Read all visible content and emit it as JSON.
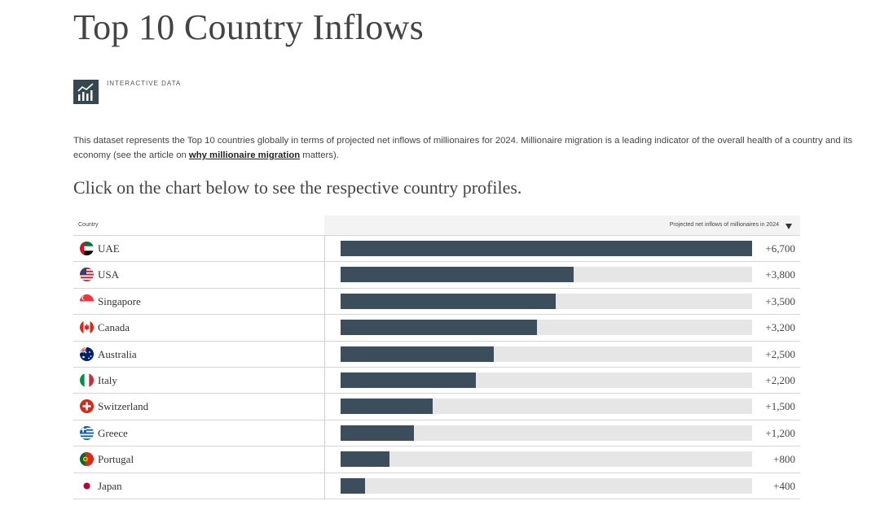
{
  "page": {
    "title": "Top 10 Country Inflows",
    "badge": "INTERACTIVE DATA",
    "description_pre": "This dataset represents the Top 10 countries globally in terms of projected net inflows of millionaires for 2024. Millionaire migration is a leading indicator of the overall health of a country and its economy (see the article on ",
    "description_link": "why millionaire migration",
    "description_post": " matters).",
    "subheading": "Click on the chart below to see the respective country profiles."
  },
  "table": {
    "col_country": "Country",
    "col_value": "Projected net inflows of millionaires in 2024",
    "bar_color": "#3c4d5c",
    "track_color": "#e6e6e6"
  },
  "chart_data": {
    "type": "bar",
    "orientation": "horizontal",
    "categories": [
      "UAE",
      "USA",
      "Singapore",
      "Canada",
      "Australia",
      "Italy",
      "Switzerland",
      "Greece",
      "Portugal",
      "Japan"
    ],
    "values": [
      6700,
      3800,
      3500,
      3200,
      2500,
      2200,
      1500,
      1200,
      800,
      400
    ],
    "labels": [
      "+6,700",
      "+3,800",
      "+3,500",
      "+3,200",
      "+2,500",
      "+2,200",
      "+1,500",
      "+1,200",
      "+800",
      "+400"
    ],
    "xlim": [
      0,
      6700
    ],
    "title": "",
    "xlabel": "Projected net inflows of millionaires in 2024",
    "ylabel": "Country"
  },
  "flags": [
    "uae-flag-icon",
    "usa-flag-icon",
    "singapore-flag-icon",
    "canada-flag-icon",
    "australia-flag-icon",
    "italy-flag-icon",
    "switzerland-flag-icon",
    "greece-flag-icon",
    "portugal-flag-icon",
    "japan-flag-icon"
  ]
}
